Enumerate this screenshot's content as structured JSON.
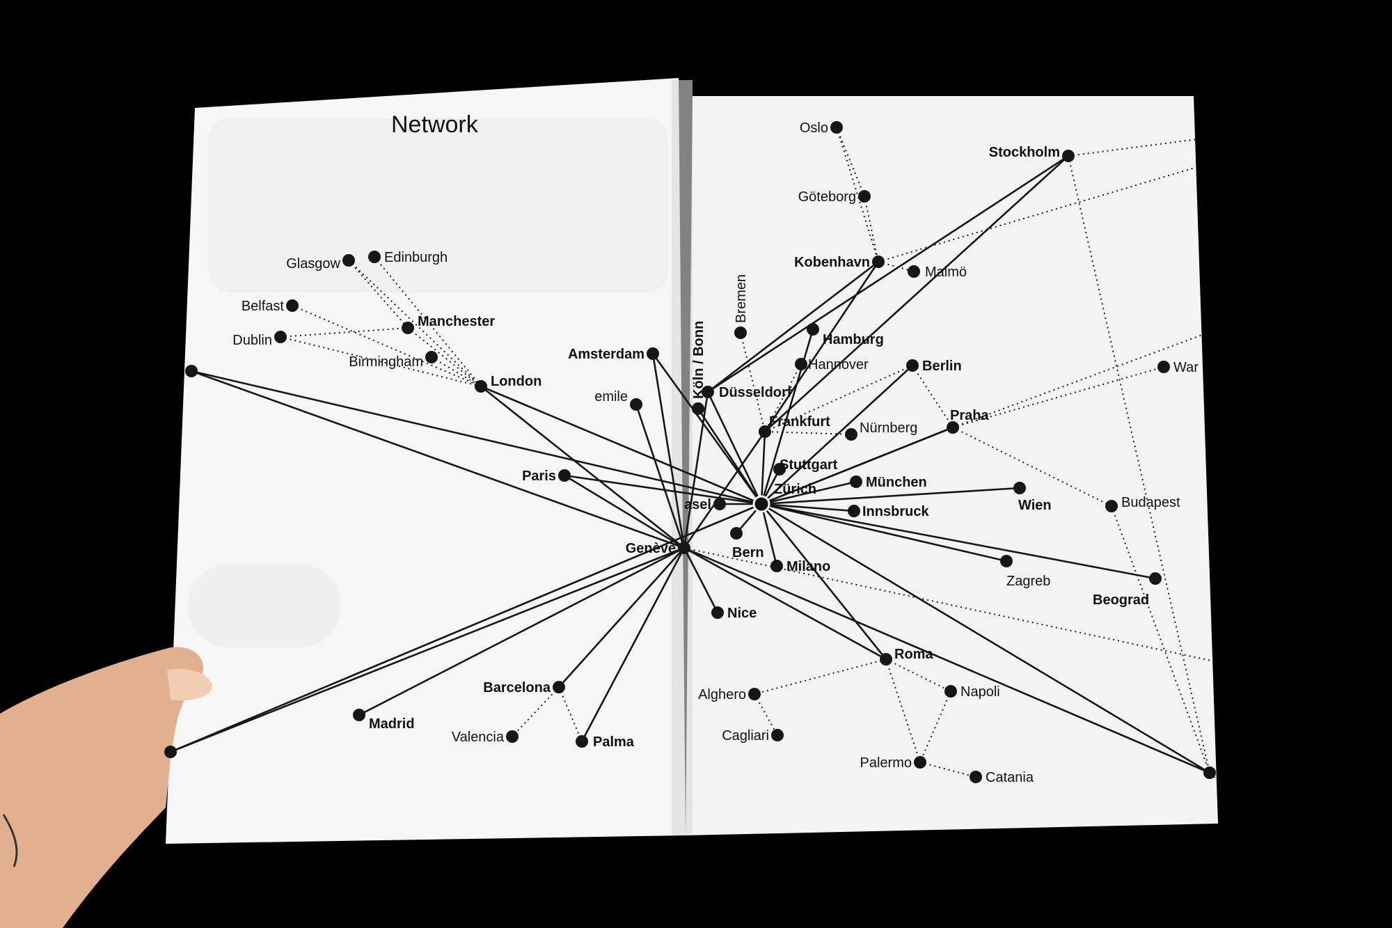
{
  "title": "Network",
  "cities": {
    "oslo": "Oslo",
    "stockholm": "Stockholm",
    "goteborg": "Göteborg",
    "kobenhavn": "Kobenhavn",
    "malmo": "Malmö",
    "bremen": "Bremen",
    "hamburg": "Hamburg",
    "hannover": "Hannover",
    "berlin": "Berlin",
    "amsterdam": "Amsterdam",
    "koln": "Köln / Bonn",
    "dusseldorf": "Düsseldorf",
    "emile": "emile",
    "frankfurt": "Frankfurt",
    "nurnberg": "Nürnberg",
    "praha": "Praha",
    "stuttgart": "Stuttgart",
    "zurich": "Zürich",
    "munchen": "München",
    "wien": "Wien",
    "basel": "asel",
    "innsbruck": "Innsbruck",
    "budapest": "Budapest",
    "bern": "Bern",
    "milano": "Milano",
    "zagreb": "Zagreb",
    "beograd": "Beograd",
    "warszawa": "War",
    "glasgow": "Glasgow",
    "edinburgh": "Edinburgh",
    "belfast": "Belfast",
    "manchester": "Manchester",
    "dublin": "Dublin",
    "birmingham": "Birmingham",
    "london": "London",
    "paris": "Paris",
    "geneve": "Genève",
    "nice": "Nice",
    "roma": "Roma",
    "napoli": "Napoli",
    "alghero": "Alghero",
    "cagliari": "Cagliari",
    "palermo": "Palermo",
    "catania": "Catania",
    "barcelona": "Barcelona",
    "valencia": "Valencia",
    "palma": "Palma",
    "madrid": "Madrid",
    "edge_a": "A"
  },
  "colors": {
    "paper": "#f5f5f5",
    "ink": "#111111",
    "background": "#000000",
    "skin": "#e6b79a"
  }
}
